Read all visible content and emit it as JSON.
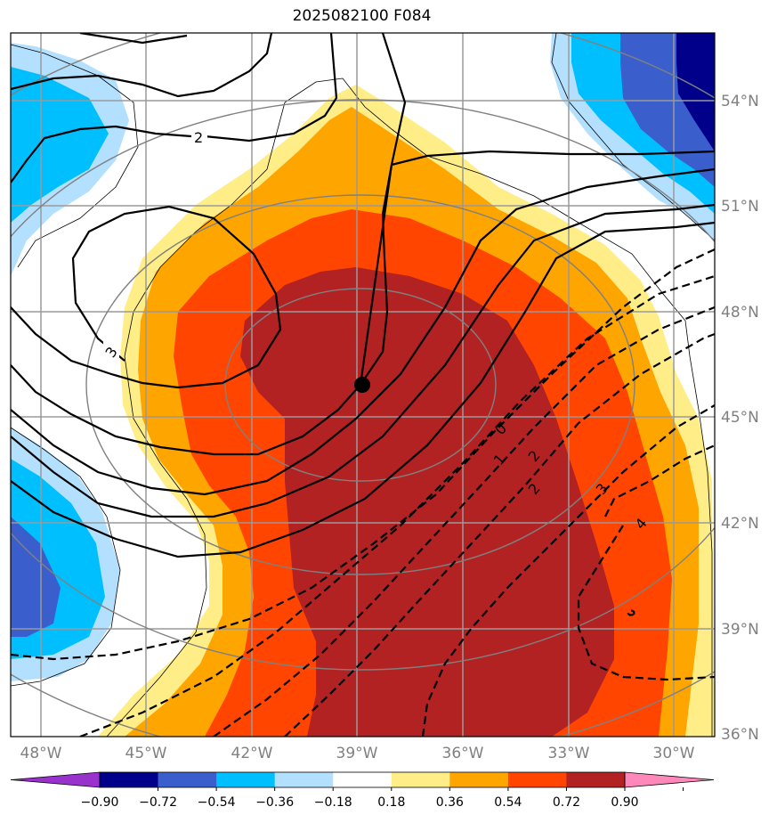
{
  "title": "2025082100 F084",
  "map": {
    "lon_ticks": [
      "48°W",
      "45°W",
      "42°W",
      "39°W",
      "36°W",
      "33°W",
      "30°W"
    ],
    "lat_ticks": [
      "54°N",
      "51°N",
      "48°N",
      "45°N",
      "42°N",
      "39°N",
      "36°N"
    ],
    "center_marker": {
      "lon": -38.9,
      "lat": 46.1
    },
    "contour_labels_solid": [
      "2",
      "3"
    ],
    "contour_labels_dashed": [
      "0",
      "1",
      "2",
      "2",
      "3",
      "4",
      "5"
    ]
  },
  "colorbar": {
    "ticks": [
      "−0.90",
      "−0.72",
      "−0.54",
      "−0.36",
      "−0.18",
      "0.18",
      "0.36",
      "0.54",
      "0.72",
      "0.90"
    ],
    "colors": [
      "#9932cc",
      "#00008b",
      "#3a5fcd",
      "#00bfff",
      "#b3e0ff",
      "#ffffff",
      "#ffee88",
      "#ffa500",
      "#ff4500",
      "#b22222",
      "#ff88bb"
    ]
  }
}
